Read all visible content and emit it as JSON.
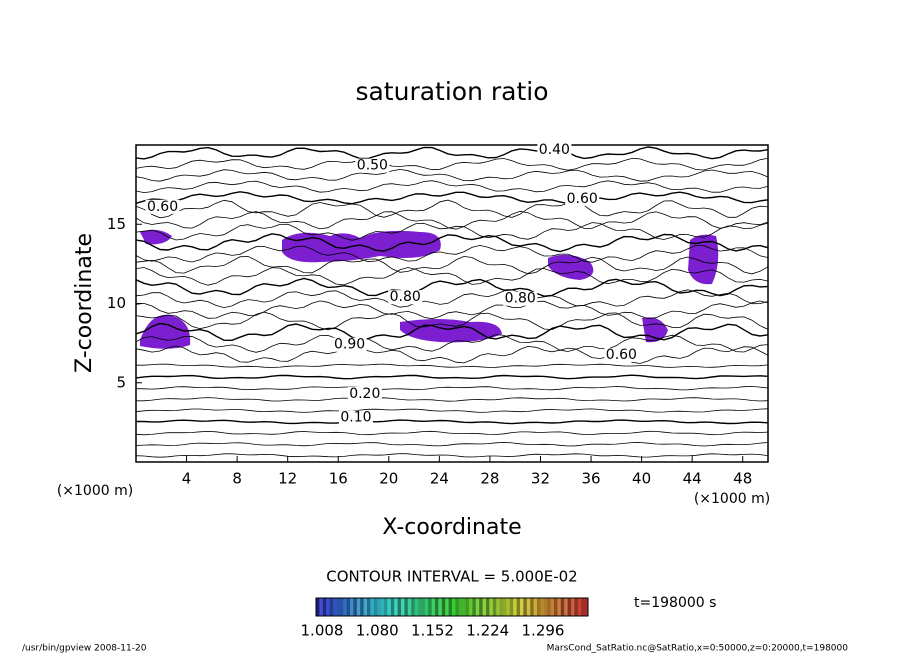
{
  "chart_data": {
    "type": "contour",
    "title": "saturation ratio",
    "x_label": "X-coordinate",
    "y_label": "Z-coordinate",
    "x_unit": "(×1000 m)",
    "y_unit": "(×1000 m)",
    "xlim": [
      0,
      50
    ],
    "ylim": [
      0,
      20
    ],
    "xticks": [
      4,
      8,
      12,
      16,
      20,
      24,
      28,
      32,
      36,
      40,
      44,
      48
    ],
    "yticks": [
      5,
      10,
      15
    ],
    "fill_color": "#7b1fd0",
    "contour_labels": [
      {
        "x": 33.1,
        "y": 19.7,
        "value": 0.4,
        "label": "0.40"
      },
      {
        "x": 18.7,
        "y": 18.7,
        "value": 0.5,
        "label": "0.50"
      },
      {
        "x": 2.1,
        "y": 16.1,
        "value": 0.6,
        "label": "0.60"
      },
      {
        "x": 35.3,
        "y": 16.6,
        "value": 0.6,
        "label": "0.60"
      },
      {
        "x": 21.3,
        "y": 10.4,
        "value": 0.8,
        "label": "0.80"
      },
      {
        "x": 30.4,
        "y": 10.3,
        "value": 0.8,
        "label": "0.80"
      },
      {
        "x": 16.9,
        "y": 7.4,
        "value": 0.9,
        "label": "0.90"
      },
      {
        "x": 38.4,
        "y": 6.75,
        "value": 0.6,
        "label": "0.60"
      },
      {
        "x": 18.1,
        "y": 4.3,
        "value": 0.2,
        "label": "0.20"
      },
      {
        "x": 17.4,
        "y": 2.8,
        "value": 0.1,
        "label": "0.10"
      }
    ],
    "contour_interval_text": "CONTOUR INTERVAL = 5.000E-02",
    "time_text": "t=198000 s",
    "colorbar_ticks": [
      {
        "value": 1.008,
        "label": "1.008"
      },
      {
        "value": 1.08,
        "label": "1.080"
      },
      {
        "value": 1.152,
        "label": "1.152"
      },
      {
        "value": 1.224,
        "label": "1.224"
      },
      {
        "value": 1.296,
        "label": "1.296"
      }
    ],
    "footer_left": "/usr/bin/gpview   2008-11-20",
    "footer_right": "MarsCond_SatRatio.nc@SatRatio,x=0:50000,z=0:20000,t=198000"
  }
}
